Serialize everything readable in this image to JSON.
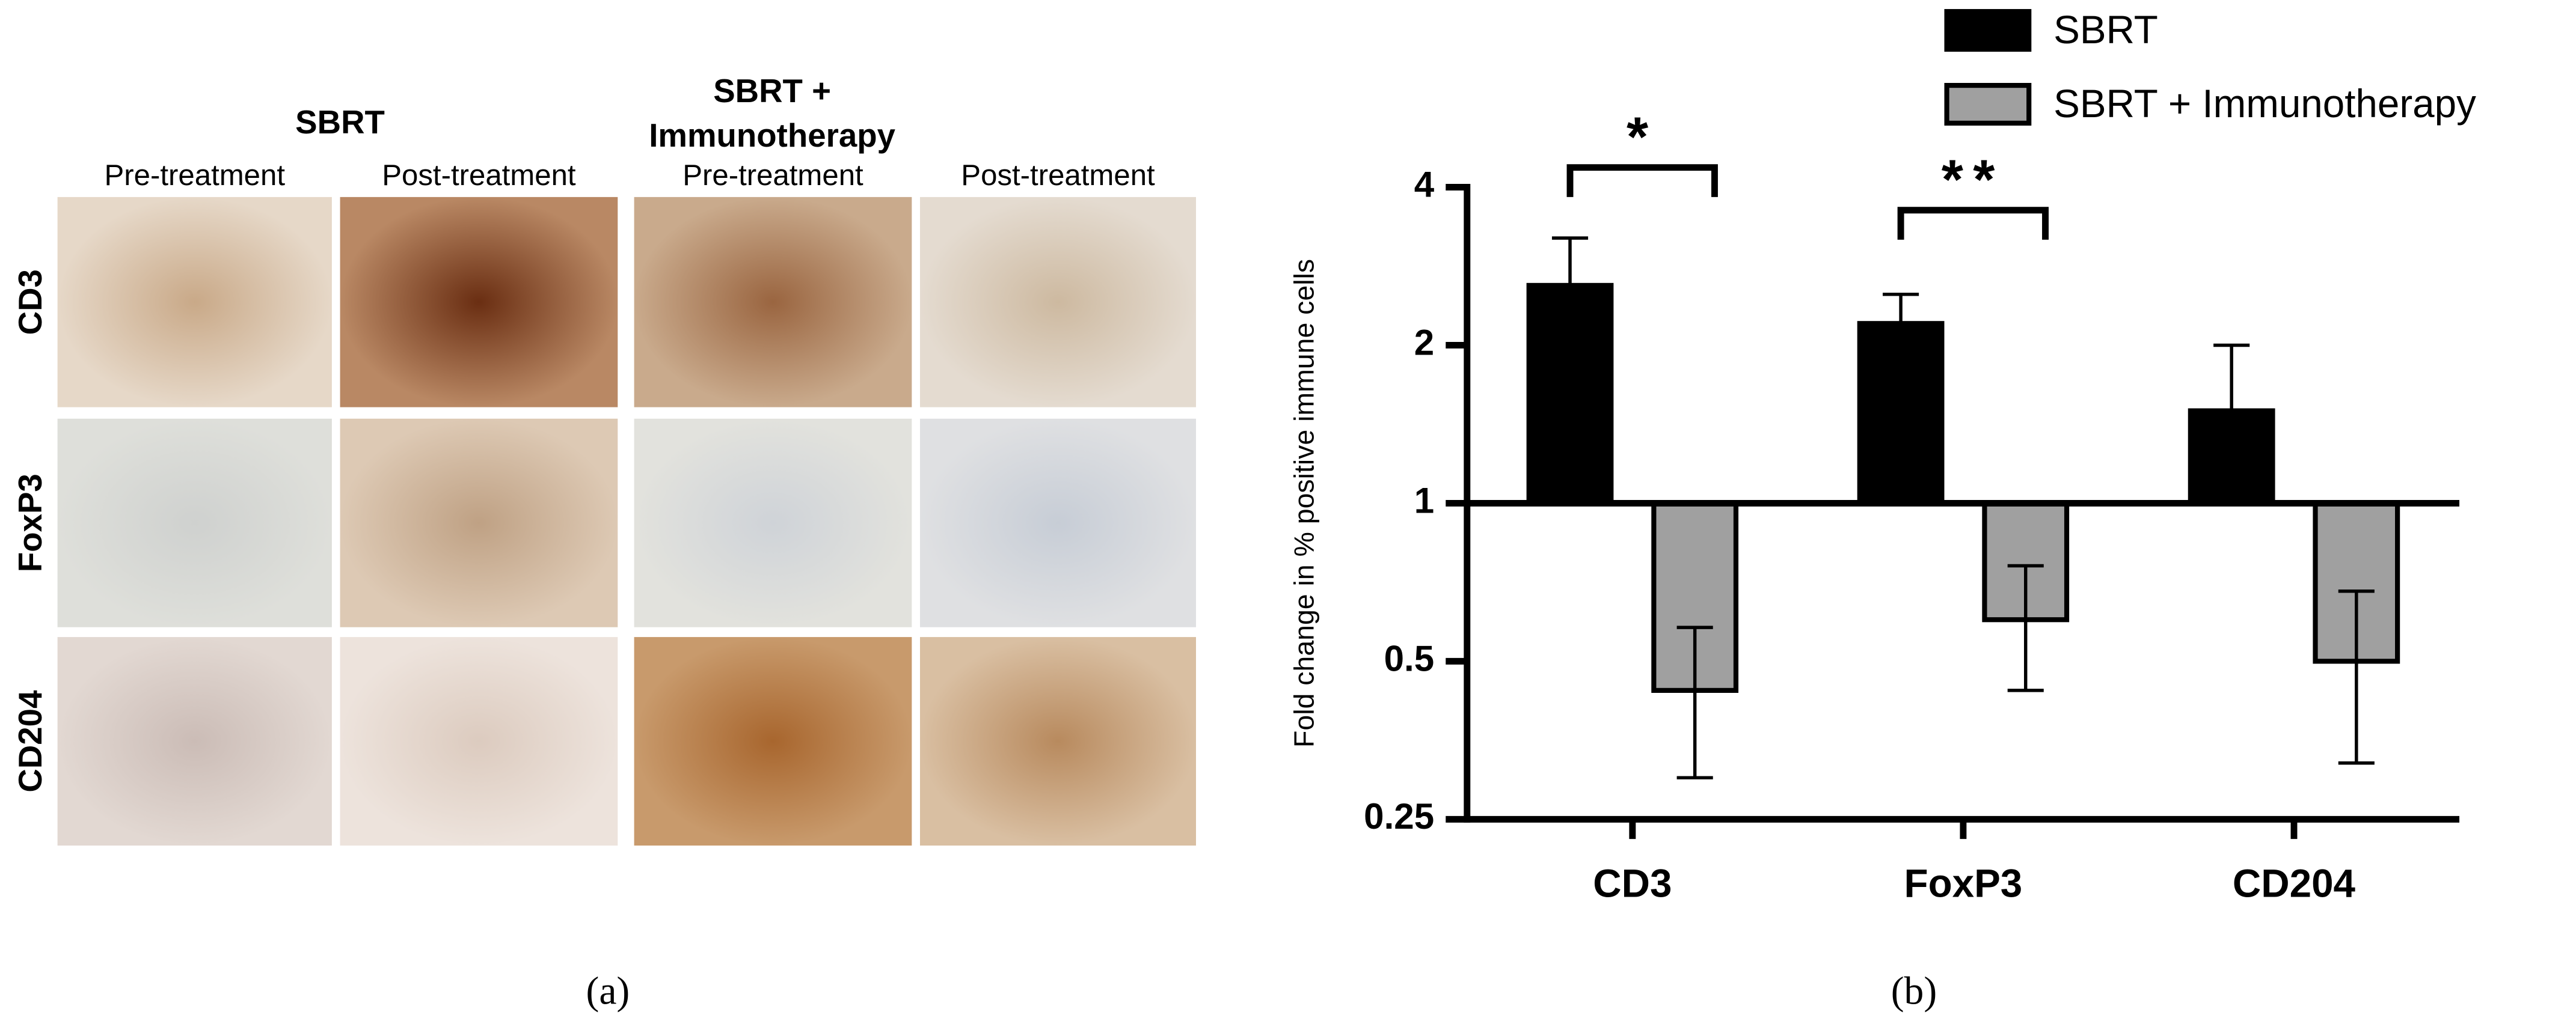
{
  "panel_a": {
    "group_titles": [
      [
        "SBRT"
      ],
      [
        "SBRT +",
        "Immunotherapy"
      ]
    ],
    "column_labels": [
      "Pre-treatment",
      "Post-treatment",
      "Pre-treatment",
      "Post-treatment"
    ],
    "row_labels": [
      "CD3",
      "FoxP3",
      "CD204"
    ],
    "caption": "(a)"
  },
  "panel_b": {
    "caption": "(b)"
  },
  "chart_data": {
    "type": "bar",
    "ylabel": "Fold change in % positive immune cells",
    "categories": [
      "CD3",
      "FoxP3",
      "CD204"
    ],
    "series": [
      {
        "name": "SBRT",
        "color": "#000000",
        "values": [
          2.6,
          2.2,
          1.5
        ],
        "errors": [
          0.6,
          0.3,
          0.5
        ]
      },
      {
        "name": "SBRT + Immunotherapy",
        "color": "#a0a0a0",
        "values": [
          0.44,
          0.6,
          0.5
        ],
        "errors": [
          0.14,
          0.16,
          0.18
        ]
      }
    ],
    "log_scale": true,
    "ylim": [
      0.25,
      4
    ],
    "yticks": [
      0.25,
      0.5,
      1,
      2,
      4
    ],
    "legend": "top-right",
    "annotations": [
      "*",
      "**"
    ]
  }
}
